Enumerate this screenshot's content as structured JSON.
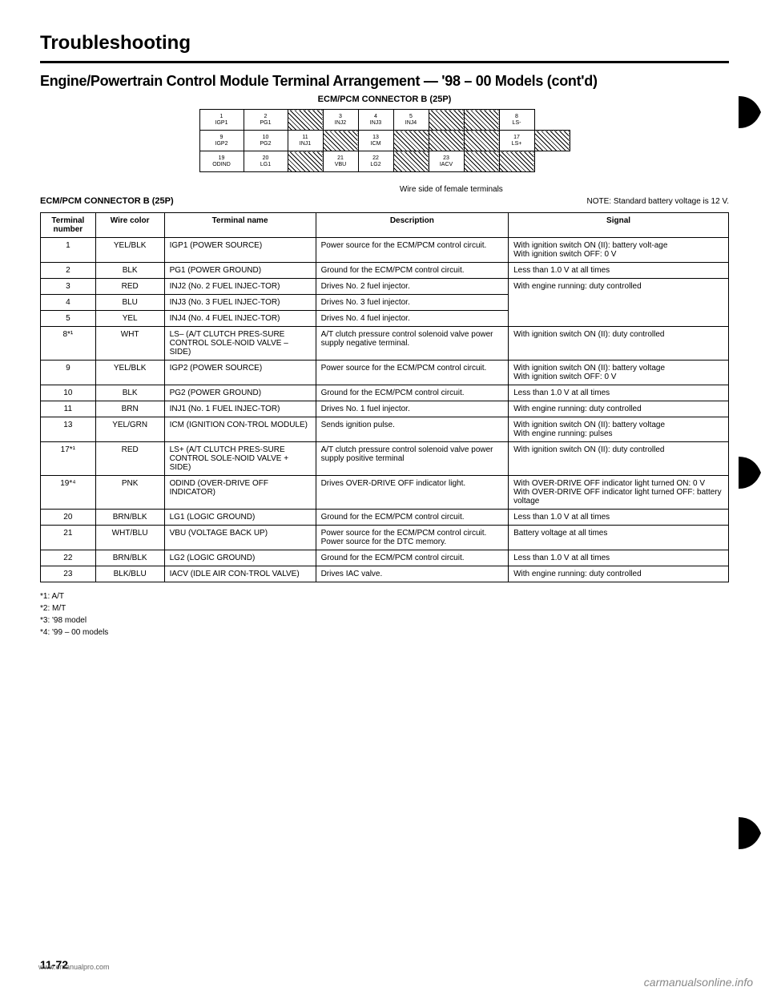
{
  "title": "Troubleshooting",
  "subtitle": "Engine/Powertrain Control Module Terminal Arrangement — '98 – 00 Models (cont'd)",
  "diagram_label": "ECM/PCM CONNECTOR B (25P)",
  "wire_note": "Wire side of female terminals",
  "conn_label": "ECM/PCM CONNECTOR B (25P)",
  "std_note": "NOTE:  Standard battery voltage is 12 V.",
  "connector": {
    "row1": [
      {
        "n": "1",
        "l": "IGP1",
        "wide": true
      },
      {
        "n": "2",
        "l": "PG1",
        "wide": true
      },
      {
        "hatch": true
      },
      {
        "n": "3",
        "l": "INJ2"
      },
      {
        "n": "4",
        "l": "INJ3"
      },
      {
        "n": "5",
        "l": "INJ4"
      },
      {
        "hatch": true
      },
      {
        "hatch": true
      },
      {
        "n": "8",
        "l": "LS-"
      }
    ],
    "row2": [
      {
        "n": "9",
        "l": "IGP2",
        "wide": true
      },
      {
        "n": "10",
        "l": "PG2",
        "wide": true
      },
      {
        "n": "11",
        "l": "INJ1"
      },
      {
        "hatch": true
      },
      {
        "n": "13",
        "l": "ICM"
      },
      {
        "hatch": true
      },
      {
        "hatch": true
      },
      {
        "hatch": true
      },
      {
        "n": "17",
        "l": "LS+"
      },
      {
        "hatch": true
      }
    ],
    "row3": [
      {
        "n": "19",
        "l": "ODIND",
        "wide": true
      },
      {
        "n": "20",
        "l": "LG1",
        "wide": true
      },
      {
        "hatch": true
      },
      {
        "n": "21",
        "l": "VBU"
      },
      {
        "n": "22",
        "l": "LG2"
      },
      {
        "hatch": true
      },
      {
        "n": "23",
        "l": "IACV"
      },
      {
        "hatch": true
      },
      {
        "hatch": true
      }
    ]
  },
  "headers": [
    "Terminal number",
    "Wire color",
    "Terminal name",
    "Description",
    "Signal"
  ],
  "rows": [
    {
      "n": "1",
      "c": "YEL/BLK",
      "t": "IGP1 (POWER SOURCE)",
      "d": "Power source for the ECM/PCM control circuit.",
      "s": "With ignition switch ON (II): battery volt-age\nWith ignition switch OFF: 0 V"
    },
    {
      "n": "2",
      "c": "BLK",
      "t": "PG1 (POWER GROUND)",
      "d": "Ground for the ECM/PCM control circuit.",
      "s": "Less than 1.0 V at all times"
    },
    {
      "n": "3",
      "c": "RED",
      "t": "INJ2 (No. 2 FUEL INJEC-TOR)",
      "d": "Drives No. 2 fuel injector.",
      "s": "With engine running: duty controlled",
      "rowspan_s": 3
    },
    {
      "n": "4",
      "c": "BLU",
      "t": "INJ3 (No. 3 FUEL INJEC-TOR)",
      "d": "Drives No. 3 fuel injector."
    },
    {
      "n": "5",
      "c": "YEL",
      "t": "INJ4 (No. 4 FUEL INJEC-TOR)",
      "d": "Drives No. 4 fuel injector."
    },
    {
      "n": "8*¹",
      "c": "WHT",
      "t": "LS– (A/T CLUTCH PRES-SURE CONTROL SOLE-NOID VALVE – SIDE)",
      "d": "A/T clutch pressure control solenoid valve power supply negative terminal.",
      "s": "With ignition switch ON (II): duty controlled"
    },
    {
      "n": "9",
      "c": "YEL/BLK",
      "t": "IGP2 (POWER SOURCE)",
      "d": "Power source for the ECM/PCM control circuit.",
      "s": "With ignition switch ON (II): battery voltage\nWith ignition switch OFF: 0 V"
    },
    {
      "n": "10",
      "c": "BLK",
      "t": "PG2 (POWER GROUND)",
      "d": "Ground for the ECM/PCM control circuit.",
      "s": "Less than 1.0 V at all times"
    },
    {
      "n": "11",
      "c": "BRN",
      "t": "INJ1 (No. 1 FUEL INJEC-TOR)",
      "d": "Drives No. 1 fuel injector.",
      "s": "With engine running: duty controlled"
    },
    {
      "n": "13",
      "c": "YEL/GRN",
      "t": "ICM (IGNITION CON-TROL MODULE)",
      "d": "Sends ignition pulse.",
      "s": "With ignition switch ON (II): battery voltage\nWith engine running: pulses"
    },
    {
      "n": "17*¹",
      "c": "RED",
      "t": "LS+ (A/T CLUTCH PRES-SURE CONTROL SOLE-NOID VALVE + SIDE)",
      "d": "A/T clutch pressure control solenoid valve power supply positive terminal",
      "s": "With ignition switch ON (II): duty controlled"
    },
    {
      "n": "19*⁴",
      "c": "PNK",
      "t": "ODIND (OVER-DRIVE OFF INDICATOR)",
      "d": "Drives OVER-DRIVE OFF indicator light.",
      "s": "With OVER-DRIVE OFF indicator light turned ON: 0 V\nWith OVER-DRIVE OFF indicator light turned OFF: battery voltage"
    },
    {
      "n": "20",
      "c": "BRN/BLK",
      "t": "LG1 (LOGIC GROUND)",
      "d": "Ground for the ECM/PCM control circuit.",
      "s": "Less than 1.0 V at all times"
    },
    {
      "n": "21",
      "c": "WHT/BLU",
      "t": "VBU (VOLTAGE BACK UP)",
      "d": "Power source for the ECM/PCM control circuit.\nPower source for the DTC memory.",
      "s": "Battery voltage at all times"
    },
    {
      "n": "22",
      "c": "BRN/BLK",
      "t": "LG2 (LOGIC GROUND)",
      "d": "Ground for the ECM/PCM control circuit.",
      "s": "Less than 1.0 V at all times"
    },
    {
      "n": "23",
      "c": "BLK/BLU",
      "t": "IACV (IDLE AIR CON-TROL VALVE)",
      "d": "Drives IAC valve.",
      "s": "With engine running: duty controlled"
    }
  ],
  "footnotes": [
    "*1: A/T",
    "*2: M/T",
    "*3: '98 model",
    "*4: '99 – 00 models"
  ],
  "page_num": "11-72",
  "watermark": "carmanualsonline.info",
  "watermark2": "www.emanualpro.com"
}
